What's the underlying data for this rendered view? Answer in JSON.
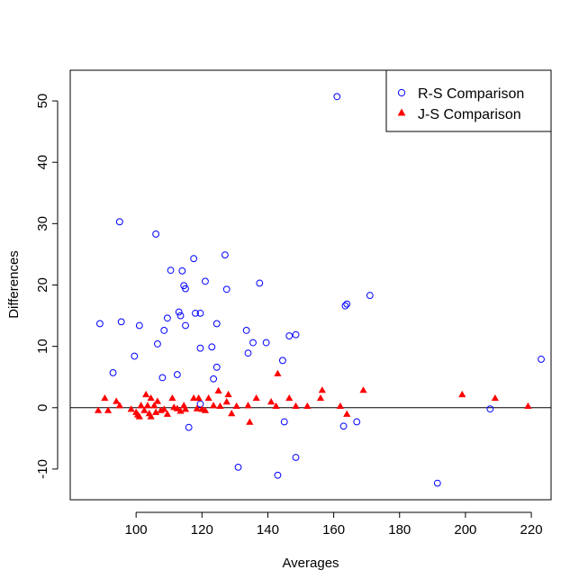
{
  "chart_data": {
    "type": "scatter",
    "title": "",
    "xlabel": "Averages",
    "ylabel": "Differences",
    "xlim": [
      80,
      226
    ],
    "ylim": [
      -15,
      55
    ],
    "x_ticks": [
      "100",
      "120",
      "140",
      "160",
      "180",
      "200",
      "220"
    ],
    "y_ticks": [
      "-10",
      "0",
      "10",
      "20",
      "30",
      "40",
      "50"
    ],
    "reference_line_y": 0,
    "legend_position": "top-right",
    "series": [
      {
        "name": "R-S Comparison",
        "marker": "open-circle",
        "color": "#0000ff",
        "points": [
          [
            89,
            13.7
          ],
          [
            93,
            5.7
          ],
          [
            95,
            30.3
          ],
          [
            95.5,
            14
          ],
          [
            99.5,
            8.4
          ],
          [
            101,
            13.4
          ],
          [
            106,
            28.3
          ],
          [
            106.5,
            10.4
          ],
          [
            108,
            4.9
          ],
          [
            108.5,
            12.6
          ],
          [
            109.5,
            14.6
          ],
          [
            110.5,
            22.4
          ],
          [
            112.5,
            5.4
          ],
          [
            113,
            15.6
          ],
          [
            113.5,
            15
          ],
          [
            114,
            22.3
          ],
          [
            114.5,
            19.9
          ],
          [
            115,
            19.4
          ],
          [
            115,
            13.4
          ],
          [
            116,
            -3.2
          ],
          [
            117.5,
            24.3
          ],
          [
            118,
            15.4
          ],
          [
            119.5,
            15.4
          ],
          [
            119.5,
            9.7
          ],
          [
            119.5,
            0.6
          ],
          [
            121,
            20.6
          ],
          [
            123,
            9.9
          ],
          [
            123.5,
            4.7
          ],
          [
            124.5,
            13.7
          ],
          [
            124.5,
            6.6
          ],
          [
            127,
            24.9
          ],
          [
            127.5,
            19.3
          ],
          [
            131,
            -9.7
          ],
          [
            133.5,
            12.6
          ],
          [
            134,
            8.9
          ],
          [
            135.5,
            10.6
          ],
          [
            137.5,
            20.3
          ],
          [
            139.5,
            10.6
          ],
          [
            143,
            -11
          ],
          [
            144.5,
            7.7
          ],
          [
            145,
            -2.3
          ],
          [
            146.5,
            11.7
          ],
          [
            148.5,
            11.9
          ],
          [
            148.5,
            -8.1
          ],
          [
            161,
            50.7
          ],
          [
            163,
            -3
          ],
          [
            163.5,
            16.6
          ],
          [
            164,
            16.9
          ],
          [
            167,
            -2.3
          ],
          [
            171,
            18.3
          ],
          [
            191.5,
            -12.3
          ],
          [
            207.5,
            -0.2
          ],
          [
            223,
            7.9
          ]
        ]
      },
      {
        "name": "J-S Comparison",
        "marker": "filled-triangle",
        "color": "#ff0000",
        "points": [
          [
            88.5,
            -0.5
          ],
          [
            90.5,
            1.5
          ],
          [
            91.5,
            -0.5
          ],
          [
            94,
            1
          ],
          [
            95,
            0.3
          ],
          [
            98.5,
            -0.3
          ],
          [
            100,
            -0.8
          ],
          [
            100.5,
            -1.2
          ],
          [
            101,
            -1.5
          ],
          [
            101.5,
            0.3
          ],
          [
            102.5,
            -0.5
          ],
          [
            103,
            2.1
          ],
          [
            103.5,
            0.3
          ],
          [
            104,
            -1
          ],
          [
            104.5,
            -1.5
          ],
          [
            104.5,
            1.5
          ],
          [
            105.5,
            0.3
          ],
          [
            106,
            -0.8
          ],
          [
            106.5,
            1
          ],
          [
            107.5,
            -0.5
          ],
          [
            108.5,
            -0.3
          ],
          [
            109.5,
            -1.1
          ],
          [
            111,
            1.5
          ],
          [
            111.5,
            0
          ],
          [
            112.5,
            -0.2
          ],
          [
            113.5,
            -0.6
          ],
          [
            114.5,
            0.3
          ],
          [
            115,
            -0.3
          ],
          [
            117.5,
            1.5
          ],
          [
            118.5,
            -0.2
          ],
          [
            119,
            1.5
          ],
          [
            120,
            -0.3
          ],
          [
            121,
            -0.5
          ],
          [
            122,
            1.5
          ],
          [
            123.5,
            0.3
          ],
          [
            125,
            2.7
          ],
          [
            125.5,
            0.2
          ],
          [
            127.5,
            0.9
          ],
          [
            128,
            2.1
          ],
          [
            129,
            -1
          ],
          [
            130.5,
            0.2
          ],
          [
            134,
            0.3
          ],
          [
            134.5,
            -2.4
          ],
          [
            136.5,
            1.5
          ],
          [
            141,
            0.9
          ],
          [
            142.5,
            0.2
          ],
          [
            143,
            5.5
          ],
          [
            146.5,
            1.5
          ],
          [
            148.5,
            0.2
          ],
          [
            152,
            0.2
          ],
          [
            156,
            1.5
          ],
          [
            156.5,
            2.8
          ],
          [
            162,
            0.2
          ],
          [
            164,
            -1.1
          ],
          [
            169,
            2.8
          ],
          [
            199,
            2.1
          ],
          [
            209,
            1.5
          ],
          [
            219,
            0.2
          ]
        ]
      }
    ]
  }
}
